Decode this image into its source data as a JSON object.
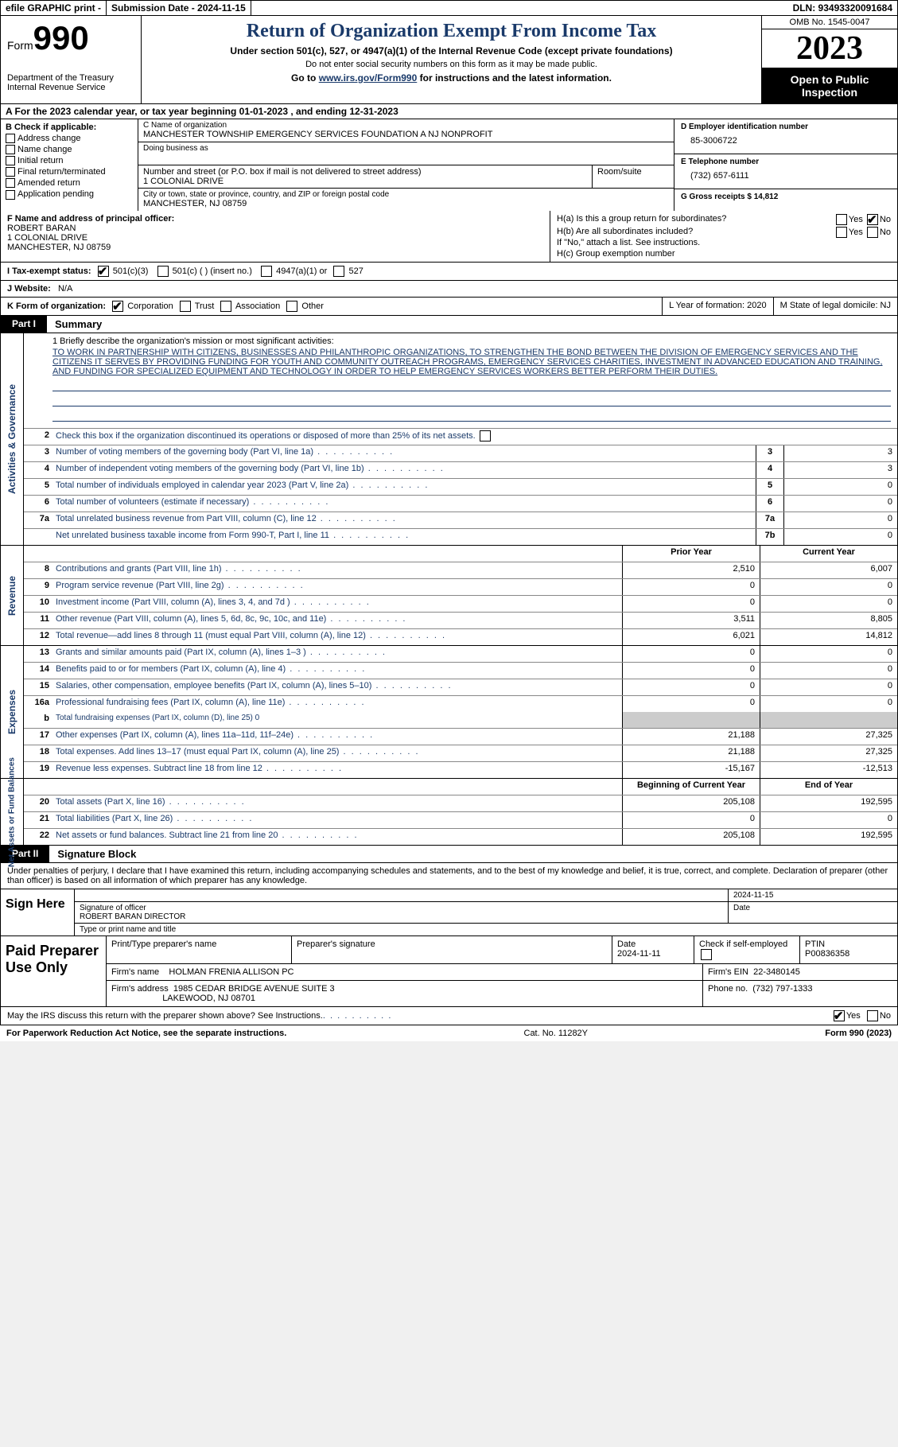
{
  "topbar": {
    "efile": "efile GRAPHIC print -",
    "submission_label": "Submission Date - 2024-11-15",
    "dln_label": "DLN: 93493320091684"
  },
  "header": {
    "form_word": "Form",
    "form_num": "990",
    "dept": "Department of the Treasury Internal Revenue Service",
    "title": "Return of Organization Exempt From Income Tax",
    "sub": "Under section 501(c), 527, or 4947(a)(1) of the Internal Revenue Code (except private foundations)",
    "sub2": "Do not enter social security numbers on this form as it may be made public.",
    "sub3_pre": "Go to ",
    "sub3_link": "www.irs.gov/Form990",
    "sub3_post": " for instructions and the latest information.",
    "omb": "OMB No. 1545-0047",
    "year": "2023",
    "inspect": "Open to Public Inspection"
  },
  "sectionA": "A  For the 2023 calendar year, or tax year beginning 01-01-2023   , and ending 12-31-2023",
  "colB": {
    "label": "B Check if applicable:",
    "opts": [
      "Address change",
      "Name change",
      "Initial return",
      "Final return/terminated",
      "Amended return",
      "Application pending"
    ]
  },
  "colC": {
    "name_lbl": "C Name of organization",
    "name": "MANCHESTER TOWNSHIP EMERGENCY SERVICES FOUNDATION A NJ NONPROFIT",
    "dba_lbl": "Doing business as",
    "addr_lbl": "Number and street (or P.O. box if mail is not delivered to street address)",
    "addr": "1 COLONIAL DRIVE",
    "room_lbl": "Room/suite",
    "city_lbl": "City or town, state or province, country, and ZIP or foreign postal code",
    "city": "MANCHESTER, NJ  08759"
  },
  "colD": {
    "ein_lbl": "D Employer identification number",
    "ein": "85-3006722",
    "phone_lbl": "E Telephone number",
    "phone": "(732) 657-6111",
    "gross_lbl": "G Gross receipts $ 14,812"
  },
  "officer": {
    "lbl": "F Name and address of principal officer:",
    "name": "ROBERT BARAN",
    "addr1": "1 COLONIAL DRIVE",
    "addr2": "MANCHESTER, NJ  08759"
  },
  "hsection": {
    "ha": "H(a)  Is this a group return for subordinates?",
    "hb": "H(b)  Are all subordinates included?",
    "hb_note": "If \"No,\" attach a list. See instructions.",
    "hc": "H(c)  Group exemption number",
    "yes": "Yes",
    "no": "No"
  },
  "taxexempt": {
    "lbl": "I  Tax-exempt status:",
    "o1": "501(c)(3)",
    "o2": "501(c) (  ) (insert no.)",
    "o3": "4947(a)(1) or",
    "o4": "527"
  },
  "website": {
    "lbl": "J  Website:",
    "val": "N/A"
  },
  "formorg": {
    "lbl": "K Form of organization:",
    "corp": "Corporation",
    "trust": "Trust",
    "assoc": "Association",
    "other": "Other"
  },
  "yearform": {
    "lbl": "L Year of formation: 2020"
  },
  "domicile": {
    "lbl": "M State of legal domicile: NJ"
  },
  "part1": {
    "tab": "Part I",
    "title": "Summary"
  },
  "mission": {
    "lead": "1   Briefly describe the organization's mission or most significant activities:",
    "text": "TO WORK IN PARTNERSHIP WITH CITIZENS, BUSINESSES AND PHILANTHROPIC ORGANIZATIONS, TO STRENGTHEN THE BOND BETWEEN THE DIVISION OF EMERGENCY SERVICES AND THE CITIZENS IT SERVES BY PROVIDING FUNDING FOR YOUTH AND COMMUNITY OUTREACH PROGRAMS, EMERGENCY SERVICES CHARITIES, INVESTMENT IN ADVANCED EDUCATION AND TRAINING, AND FUNDING FOR SPECIALIZED EQUIPMENT AND TECHNOLOGY IN ORDER TO HELP EMERGENCY SERVICES WORKERS BETTER PERFORM THEIR DUTIES."
  },
  "gov": {
    "vlabel": "Activities & Governance",
    "r2": "Check this box       if the organization discontinued its operations or disposed of more than 25% of its net assets.",
    "rows_single": [
      {
        "n": "3",
        "d": "Number of voting members of the governing body (Part VI, line 1a)",
        "box": "3",
        "v": "3"
      },
      {
        "n": "4",
        "d": "Number of independent voting members of the governing body (Part VI, line 1b)",
        "box": "4",
        "v": "3"
      },
      {
        "n": "5",
        "d": "Total number of individuals employed in calendar year 2023 (Part V, line 2a)",
        "box": "5",
        "v": "0"
      },
      {
        "n": "6",
        "d": "Total number of volunteers (estimate if necessary)",
        "box": "6",
        "v": "0"
      },
      {
        "n": "7a",
        "d": "Total unrelated business revenue from Part VIII, column (C), line 12",
        "box": "7a",
        "v": "0"
      },
      {
        "n": "",
        "d": "Net unrelated business taxable income from Form 990-T, Part I, line 11",
        "box": "7b",
        "v": "0"
      }
    ]
  },
  "twocol_head": {
    "c1": "Prior Year",
    "c2": "Current Year"
  },
  "revenue": {
    "vlabel": "Revenue",
    "rows": [
      {
        "n": "8",
        "d": "Contributions and grants (Part VIII, line 1h)",
        "v1": "2,510",
        "v2": "6,007"
      },
      {
        "n": "9",
        "d": "Program service revenue (Part VIII, line 2g)",
        "v1": "0",
        "v2": "0"
      },
      {
        "n": "10",
        "d": "Investment income (Part VIII, column (A), lines 3, 4, and 7d )",
        "v1": "0",
        "v2": "0"
      },
      {
        "n": "11",
        "d": "Other revenue (Part VIII, column (A), lines 5, 6d, 8c, 9c, 10c, and 11e)",
        "v1": "3,511",
        "v2": "8,805"
      },
      {
        "n": "12",
        "d": "Total revenue—add lines 8 through 11 (must equal Part VIII, column (A), line 12)",
        "v1": "6,021",
        "v2": "14,812"
      }
    ]
  },
  "expenses": {
    "vlabel": "Expenses",
    "rows": [
      {
        "n": "13",
        "d": "Grants and similar amounts paid (Part IX, column (A), lines 1–3 )",
        "v1": "0",
        "v2": "0"
      },
      {
        "n": "14",
        "d": "Benefits paid to or for members (Part IX, column (A), line 4)",
        "v1": "0",
        "v2": "0"
      },
      {
        "n": "15",
        "d": "Salaries, other compensation, employee benefits (Part IX, column (A), lines 5–10)",
        "v1": "0",
        "v2": "0"
      },
      {
        "n": "16a",
        "d": "Professional fundraising fees (Part IX, column (A), line 11e)",
        "v1": "0",
        "v2": "0"
      }
    ],
    "r16b_n": "b",
    "r16b": "Total fundraising expenses (Part IX, column (D), line 25) 0",
    "rows2": [
      {
        "n": "17",
        "d": "Other expenses (Part IX, column (A), lines 11a–11d, 11f–24e)",
        "v1": "21,188",
        "v2": "27,325"
      },
      {
        "n": "18",
        "d": "Total expenses. Add lines 13–17 (must equal Part IX, column (A), line 25)",
        "v1": "21,188",
        "v2": "27,325"
      },
      {
        "n": "19",
        "d": "Revenue less expenses. Subtract line 18 from line 12",
        "v1": "-15,167",
        "v2": "-12,513"
      }
    ]
  },
  "netassets": {
    "vlabel": "Net Assets or Fund Balances",
    "head": {
      "c1": "Beginning of Current Year",
      "c2": "End of Year"
    },
    "rows": [
      {
        "n": "20",
        "d": "Total assets (Part X, line 16)",
        "v1": "205,108",
        "v2": "192,595"
      },
      {
        "n": "21",
        "d": "Total liabilities (Part X, line 26)",
        "v1": "0",
        "v2": "0"
      },
      {
        "n": "22",
        "d": "Net assets or fund balances. Subtract line 21 from line 20",
        "v1": "205,108",
        "v2": "192,595"
      }
    ]
  },
  "part2": {
    "tab": "Part II",
    "title": "Signature Block"
  },
  "perjury": "Under penalties of perjury, I declare that I have examined this return, including accompanying schedules and statements, and to the best of my knowledge and belief, it is true, correct, and complete. Declaration of preparer (other than officer) is based on all information of which preparer has any knowledge.",
  "sign": {
    "label": "Sign Here",
    "date": "2024-11-15",
    "sig_lbl": "Signature of officer",
    "name": "ROBERT BARAN  DIRECTOR",
    "type_lbl": "Type or print name and title",
    "date_lbl": "Date"
  },
  "prep": {
    "label": "Paid Preparer Use Only",
    "h1": "Print/Type preparer's name",
    "h2": "Preparer's signature",
    "h3": "Date",
    "h3v": "2024-11-11",
    "h4": "Check        if self-employed",
    "h5": "PTIN",
    "h5v": "P00836358",
    "firm_lbl": "Firm's name",
    "firm": "HOLMAN FRENIA ALLISON PC",
    "firm_ein_lbl": "Firm's EIN",
    "firm_ein": "22-3480145",
    "addr_lbl": "Firm's address",
    "addr1": "1985 CEDAR BRIDGE AVENUE SUITE 3",
    "addr2": "LAKEWOOD, NJ  08701",
    "phone_lbl": "Phone no.",
    "phone": "(732) 797-1333"
  },
  "discuss": {
    "q": "May the IRS discuss this return with the preparer shown above? See Instructions.",
    "yes": "Yes",
    "no": "No"
  },
  "footer": {
    "left": "For Paperwork Reduction Act Notice, see the separate instructions.",
    "mid": "Cat. No. 11282Y",
    "right_pre": "Form ",
    "right_bold": "990",
    "right_post": " (2023)"
  },
  "colors": {
    "link": "#1a3a6a"
  }
}
